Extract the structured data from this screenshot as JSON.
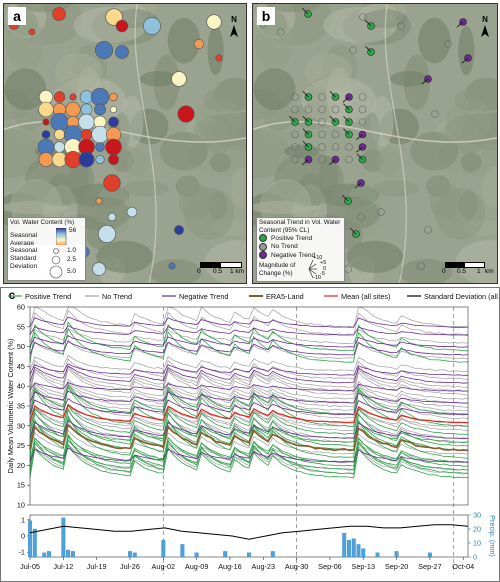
{
  "panel_a": {
    "letter": "a",
    "north": "N",
    "legend_title": "Vol. Water Content (%)",
    "seasonal_average_label": "Seasonal Average",
    "colorbar_max": "56",
    "colorbar_min": "14",
    "sd_label": "Seasonal Standard Deviation",
    "sd_values": [
      "1.0",
      "2.5",
      "5.0"
    ],
    "scale_labels": [
      "0",
      "0.5",
      "1 km"
    ]
  },
  "panel_b": {
    "letter": "b",
    "north": "N",
    "legend_title": "Seasonal Trend in Vol. Water Content (95% CL)",
    "items": [
      {
        "label": "Positive Trend",
        "color": "#2ea64a"
      },
      {
        "label": "No Trend",
        "color": "#9a9a9a"
      },
      {
        "label": "Negative Trend",
        "color": "#6a2c91"
      }
    ],
    "magnitude_label": "Magnitude of Change (%)",
    "magnitude_values": [
      "+10",
      "+5",
      "0",
      "-5",
      "-10"
    ],
    "scale_labels": [
      "0",
      "0.5",
      "1",
      "km"
    ]
  },
  "panel_c": {
    "letter": "c",
    "legend": [
      {
        "label": "Positive Trend",
        "color": "#2ea64a"
      },
      {
        "label": "No Trend",
        "color": "#a0a0a0"
      },
      {
        "label": "Negative Trend",
        "color": "#6a2c91"
      },
      {
        "label": "ERA5-Land",
        "color": "#8b5a2b"
      },
      {
        "label": "Mean (all sites)",
        "color": "#e0261e"
      },
      {
        "label": "Standard Deviation (all sites)",
        "color": "#000000"
      }
    ]
  },
  "chart_data": {
    "type": "line",
    "ylabel": "Daily Mean Volumetric Water Content (%)",
    "ylim": [
      10,
      60
    ],
    "yticks": [
      10,
      15,
      20,
      25,
      30,
      35,
      40,
      45,
      50,
      55,
      60
    ],
    "x_tick_labels": [
      "Jul-05",
      "Jul-12",
      "Jul-19",
      "Jul-26",
      "Aug-02",
      "Aug-09",
      "Aug-16",
      "Aug-23",
      "Aug-30",
      "Sep-06",
      "Sep-13",
      "Sep-20",
      "Sep-27",
      "Oct-04"
    ],
    "dashed_dates": [
      "Aug-02",
      "Aug-30",
      "Oct-02"
    ],
    "events": [
      {
        "day": 0,
        "peak": 1.0
      },
      {
        "day": 7,
        "peak": 0.9
      },
      {
        "day": 21,
        "peak": 0.5
      },
      {
        "day": 28,
        "peak": 0.9
      },
      {
        "day": 35,
        "peak": 0.6
      },
      {
        "day": 42,
        "peak": 0.45
      },
      {
        "day": 46,
        "peak": 0.6
      },
      {
        "day": 50,
        "peak": 0.4
      },
      {
        "day": 68,
        "peak": 1.0
      },
      {
        "day": 77,
        "peak": 0.35
      }
    ],
    "series": [
      {
        "name": "Mean (all sites)",
        "base": 31,
        "amp": 5
      },
      {
        "name": "ERA5-Land",
        "base": 24,
        "amp": 7
      }
    ],
    "green_bases": [
      17,
      18,
      19,
      20,
      21,
      22,
      24,
      25,
      26,
      28,
      30,
      33,
      46,
      49
    ],
    "grey_bases": [
      18,
      19,
      21,
      23,
      24,
      26,
      27,
      29,
      30,
      31,
      32,
      33,
      34,
      35,
      36,
      37,
      38,
      39,
      40,
      42,
      44,
      47,
      51,
      53,
      55
    ],
    "purple_bases": [
      21,
      27,
      33,
      36,
      39,
      41,
      43,
      48,
      50,
      53,
      55
    ],
    "sd_panel": {
      "ylabel_left_ticks": [
        "1",
        "0",
        "-1"
      ],
      "right_ylabel": "Precip. (mm)",
      "right_ticks": [
        "30",
        "20",
        "10",
        "0"
      ],
      "sd_values": [
        0.2,
        0.4,
        0.6,
        0.5,
        0.4,
        0.3,
        0.3,
        0.4,
        0.5,
        0.3,
        0.2,
        0.1,
        0.0,
        -0.2,
        0.0,
        0.2,
        0.3,
        0.4,
        0.5,
        0.6,
        0.6,
        0.5,
        0.5,
        0.6,
        0.7,
        0.7,
        0.6
      ],
      "precip": [
        {
          "day": 0,
          "mm": 26
        },
        {
          "day": 1,
          "mm": 20
        },
        {
          "day": 3,
          "mm": 3
        },
        {
          "day": 4,
          "mm": 4
        },
        {
          "day": 7,
          "mm": 28
        },
        {
          "day": 8,
          "mm": 5
        },
        {
          "day": 9,
          "mm": 4
        },
        {
          "day": 21,
          "mm": 4
        },
        {
          "day": 22,
          "mm": 3
        },
        {
          "day": 28,
          "mm": 12
        },
        {
          "day": 32,
          "mm": 9
        },
        {
          "day": 35,
          "mm": 3
        },
        {
          "day": 41,
          "mm": 4
        },
        {
          "day": 46,
          "mm": 3
        },
        {
          "day": 51,
          "mm": 4
        },
        {
          "day": 66,
          "mm": 17
        },
        {
          "day": 67,
          "mm": 12
        },
        {
          "day": 68,
          "mm": 13
        },
        {
          "day": 69,
          "mm": 9
        },
        {
          "day": 70,
          "mm": 6
        },
        {
          "day": 73,
          "mm": 3
        },
        {
          "day": 77,
          "mm": 4
        },
        {
          "day": 84,
          "mm": 3
        }
      ]
    }
  }
}
